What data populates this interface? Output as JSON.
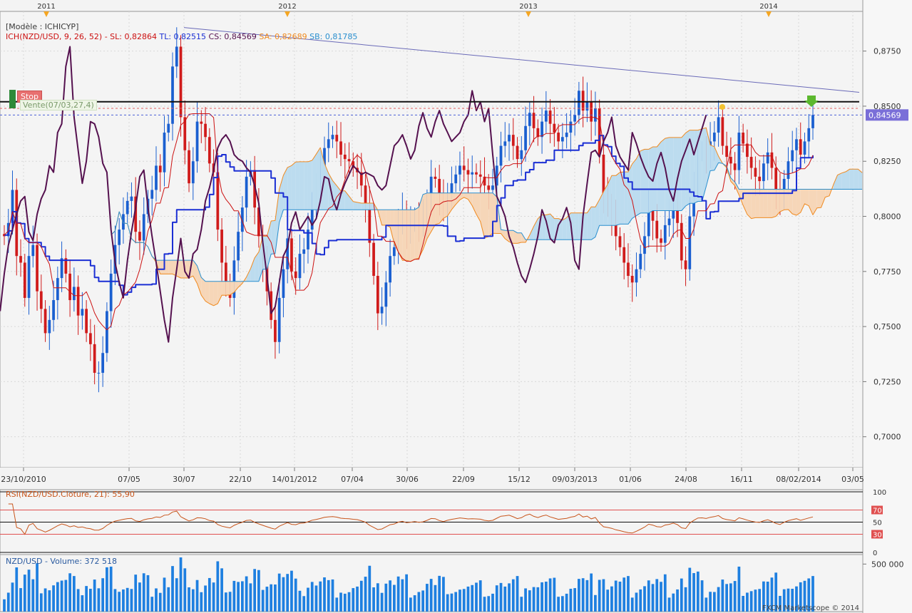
{
  "panel_labels": {
    "model": "[Modèle : ICHICYP]",
    "ich_name": "ICH(NZD/USD, 9, 26, 52) -",
    "sl": "SL: 0,82864",
    "tl": "TL: 0,82515",
    "cs": "CS: 0,84569",
    "sa": "SA: 0,82689",
    "sb": "SB: 0,81785",
    "stop": "Stop",
    "vente": "Vente(07/03,27,4)",
    "last_price": "0,84569",
    "rsi": "RSI(NZD/USD.Cloture, 21): 55,90",
    "volume": "NZD/USD - Volume: 372 518",
    "footer": "FXCM Marketscope © 2014"
  },
  "colors": {
    "kijun": "#1b2fd4",
    "tenkan": "#cc1111",
    "chikou": "#55114f",
    "senkou_a": "#f08a20",
    "senkou_b": "#2a8fcf",
    "cloud_bull": "#bcdcef",
    "cloud_bear": "#f6d6b8",
    "candle_up": "#1a5fd0",
    "candle_down": "#d01b1b",
    "volume": "#1e7fe0",
    "background": "#f4f4f4"
  },
  "chart_data": [
    {
      "type": "candlestick",
      "title": "NZD/USD",
      "top_axis": [
        "2011",
        "2012",
        "2013",
        "2014"
      ],
      "x_labels": [
        "23/10/2010",
        "07/05",
        "30/07",
        "22/10",
        "14/01/2012",
        "07/04",
        "30/06",
        "22/09",
        "15/12",
        "09/03/2013",
        "01/06",
        "24/08",
        "16/11",
        "08/02/2014",
        "03/05"
      ],
      "y_ticks": [
        "0,8750",
        "0,8500",
        "0,8250",
        "0,8000",
        "0,7750",
        "0,7500",
        "0,7250",
        "0,7000"
      ],
      "ylim": [
        0.686,
        0.893
      ],
      "candles_close": [
        0.791,
        0.797,
        0.812,
        0.782,
        0.779,
        0.763,
        0.782,
        0.787,
        0.766,
        0.758,
        0.747,
        0.753,
        0.762,
        0.772,
        0.781,
        0.774,
        0.762,
        0.768,
        0.755,
        0.758,
        0.747,
        0.742,
        0.729,
        0.729,
        0.738,
        0.757,
        0.774,
        0.787,
        0.794,
        0.801,
        0.807,
        0.809,
        0.793,
        0.789,
        0.801,
        0.808,
        0.812,
        0.823,
        0.82,
        0.838,
        0.842,
        0.868,
        0.877,
        0.845,
        0.83,
        0.815,
        0.825,
        0.843,
        0.842,
        0.836,
        0.824,
        0.82,
        0.794,
        0.779,
        0.77,
        0.763,
        0.78,
        0.793,
        0.804,
        0.818,
        0.821,
        0.804,
        0.791,
        0.779,
        0.766,
        0.753,
        0.743,
        0.763,
        0.776,
        0.79,
        0.775,
        0.772,
        0.783,
        0.785,
        0.794,
        0.807,
        0.813,
        0.821,
        0.831,
        0.835,
        0.837,
        0.834,
        0.828,
        0.826,
        0.825,
        0.822,
        0.82,
        0.814,
        0.806,
        0.788,
        0.773,
        0.756,
        0.759,
        0.77,
        0.782,
        0.786,
        0.797,
        0.802,
        0.794,
        0.797,
        0.8,
        0.796,
        0.799,
        0.807,
        0.818,
        0.817,
        0.808,
        0.803,
        0.81,
        0.815,
        0.819,
        0.823,
        0.821,
        0.819,
        0.82,
        0.819,
        0.818,
        0.814,
        0.812,
        0.814,
        0.823,
        0.832,
        0.834,
        0.837,
        0.832,
        0.826,
        0.83,
        0.841,
        0.847,
        0.84,
        0.836,
        0.843,
        0.848,
        0.842,
        0.838,
        0.834,
        0.836,
        0.838,
        0.843,
        0.846,
        0.857,
        0.848,
        0.852,
        0.843,
        0.849,
        0.828,
        0.809,
        0.805,
        0.8,
        0.791,
        0.786,
        0.779,
        0.773,
        0.77,
        0.776,
        0.783,
        0.791,
        0.803,
        0.798,
        0.79,
        0.788,
        0.796,
        0.799,
        0.804,
        0.797,
        0.78,
        0.776,
        0.8,
        0.815,
        0.829,
        0.83,
        0.827,
        0.834,
        0.838,
        0.845,
        0.832,
        0.827,
        0.824,
        0.821,
        0.838,
        0.833,
        0.827,
        0.822,
        0.818,
        0.816,
        0.824,
        0.829,
        0.822,
        0.812,
        0.807,
        0.817,
        0.825,
        0.83,
        0.835,
        0.828,
        0.834,
        0.84,
        0.846
      ],
      "ichimoku": {
        "tenkan_sen": "red thin line",
        "kijun_sen": "blue step line",
        "chikou_span": "purple line",
        "senkou_a": "orange",
        "senkou_b": "blue"
      },
      "horizontal_levels": [
        0.852,
        0.849,
        0.846
      ],
      "trendline": [
        [
          0.8857,
          "30/07"
        ],
        [
          0.8563,
          "03/05"
        ]
      ]
    },
    {
      "type": "line",
      "title": "RSI(NZD/USD.Cloture, 21)",
      "y_ticks": [
        "100",
        "70",
        "50",
        "30",
        "0"
      ],
      "ylim": [
        0,
        100
      ],
      "last": 55.9
    },
    {
      "type": "bar",
      "title": "NZD/USD - Volume",
      "y_ticks": [
        "500 000"
      ],
      "last": 372518
    }
  ]
}
